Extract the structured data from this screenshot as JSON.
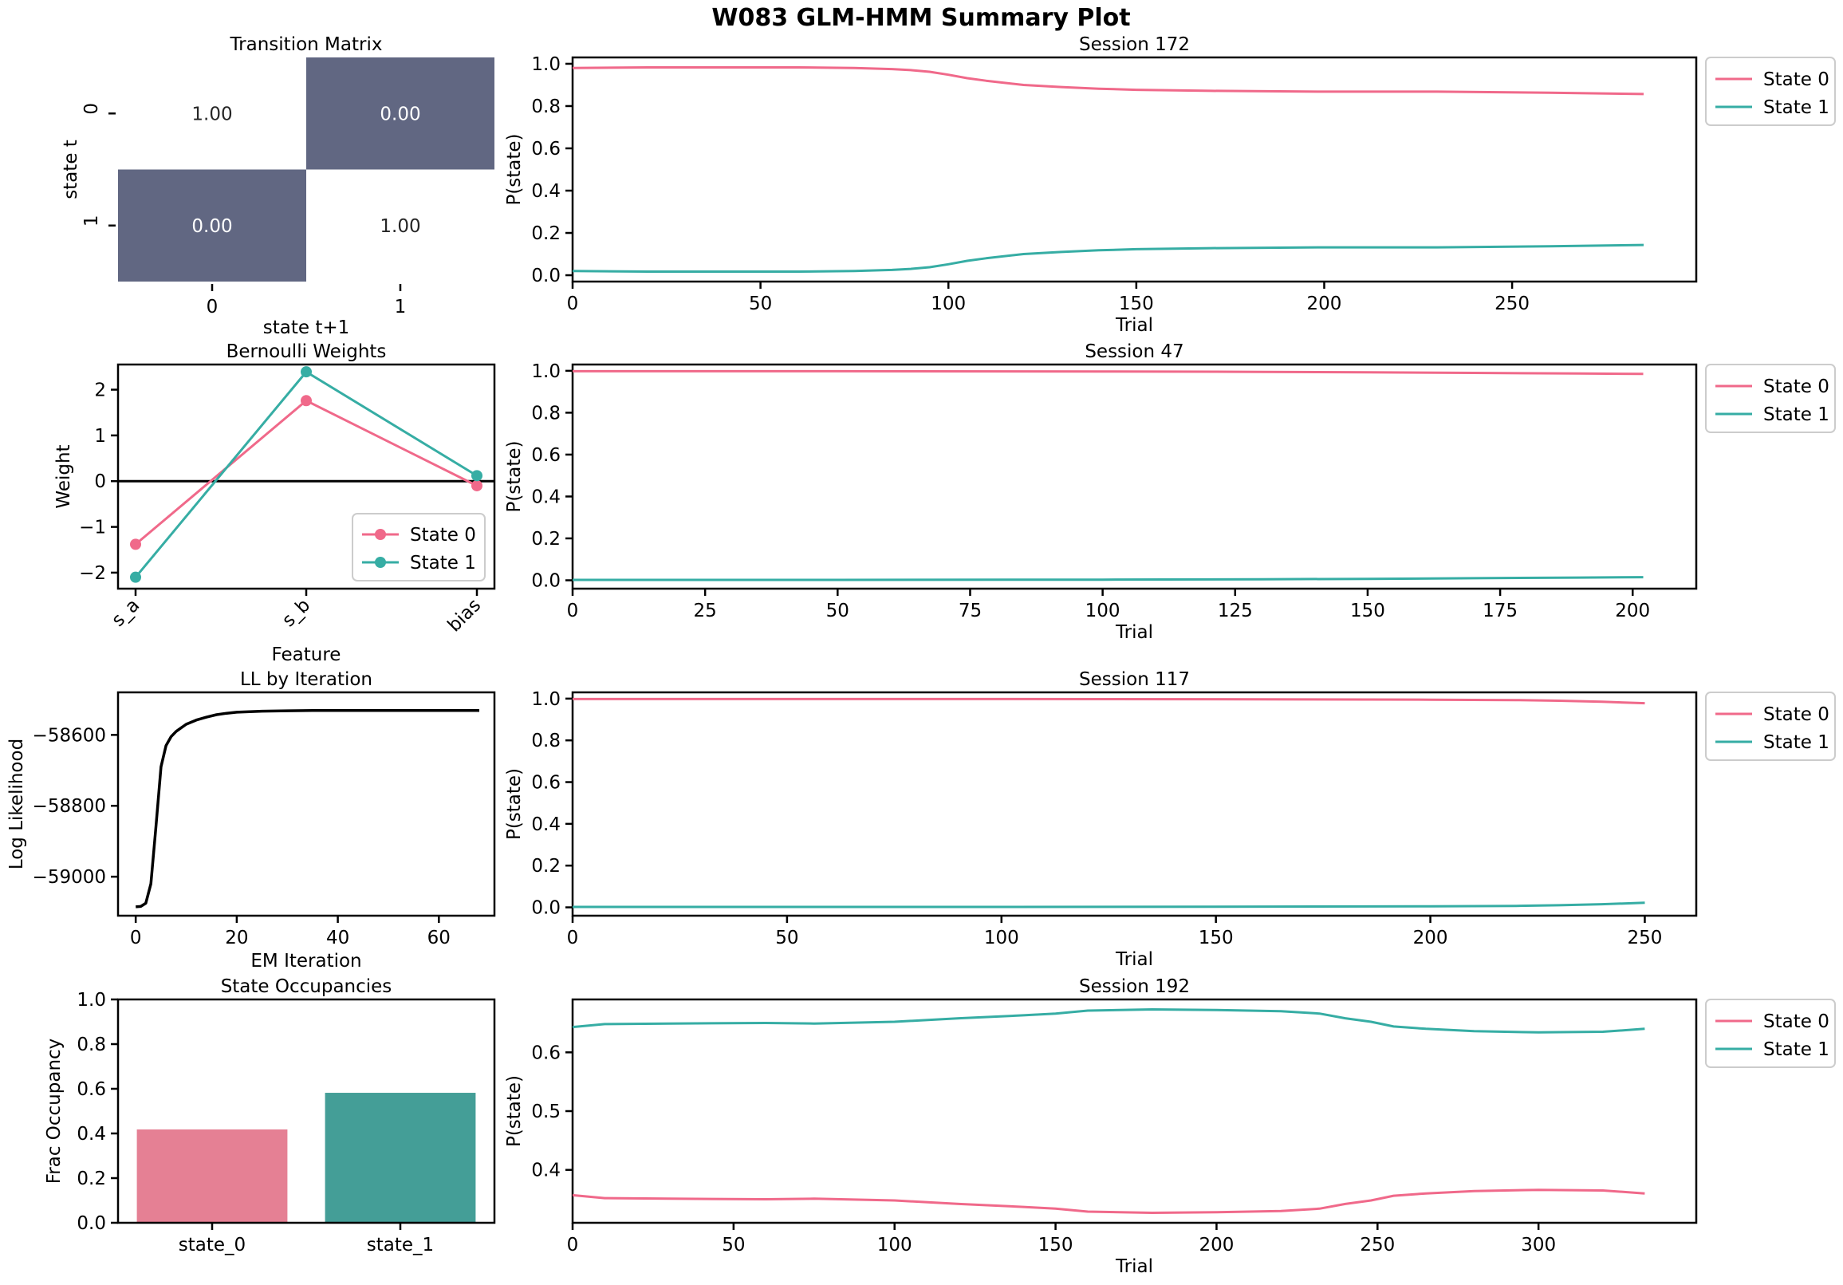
{
  "figure": {
    "title": "W083 GLM-HMM Summary Plot"
  },
  "colors": {
    "state0": "#f0698a",
    "state1": "#36ada4",
    "state0_bar": "#e58094",
    "state1_bar": "#449e97",
    "heat_dark": "#616782",
    "axis": "#000000"
  },
  "chart_data": [
    {
      "id": "transition",
      "type": "heatmap",
      "title": "Transition Matrix",
      "xlabel": "state t+1",
      "ylabel": "state t",
      "row_labels": [
        "0",
        "1"
      ],
      "col_labels": [
        "0",
        "1"
      ],
      "values": [
        [
          1.0,
          0.0
        ],
        [
          0.0,
          1.0
        ]
      ],
      "cell_text": [
        [
          "1.00",
          "0.00"
        ],
        [
          "0.00",
          "1.00"
        ]
      ]
    },
    {
      "id": "weights",
      "type": "line",
      "title": "Bernoulli Weights",
      "xlabel": "Feature",
      "ylabel": "Weight",
      "categories": [
        "s_a",
        "s_b",
        "bias"
      ],
      "ylim": [
        -2.35,
        2.55
      ],
      "yticks": [
        -2,
        -1,
        0,
        1,
        2
      ],
      "ytick_labels": [
        "−2",
        "−1",
        "0",
        "1",
        "2"
      ],
      "zero_line": true,
      "legend_position": "lower-right",
      "series": [
        {
          "name": "State 0",
          "values": [
            -1.38,
            1.76,
            -0.1
          ]
        },
        {
          "name": "State 1",
          "values": [
            -2.1,
            2.39,
            0.12
          ]
        }
      ]
    },
    {
      "id": "ll",
      "type": "line",
      "title": "LL by Iteration",
      "xlabel": "EM Iteration",
      "ylabel": "Log Likelihood",
      "xlim": [
        -3.5,
        71
      ],
      "ylim": [
        -59110,
        -58480
      ],
      "xticks": [
        0,
        20,
        40,
        60
      ],
      "yticks": [
        -59000,
        -58800,
        -58600
      ],
      "ytick_labels": [
        "−59000",
        "−58800",
        "−58600"
      ],
      "x": [
        0,
        1,
        2,
        3,
        4,
        5,
        6,
        7,
        8,
        9,
        10,
        12,
        14,
        16,
        18,
        20,
        25,
        30,
        35,
        40,
        50,
        60,
        68
      ],
      "y": [
        -59085,
        -59084,
        -59075,
        -59020,
        -58860,
        -58690,
        -58630,
        -58605,
        -58590,
        -58580,
        -58570,
        -58558,
        -58550,
        -58543,
        -58539,
        -58536,
        -58533,
        -58532,
        -58531,
        -58531,
        -58531,
        -58531,
        -58531
      ]
    },
    {
      "id": "occupancy",
      "type": "bar",
      "title": "State Occupancies",
      "ylabel": "Frac Occupancy",
      "categories": [
        "state_0",
        "state_1"
      ],
      "values": [
        0.418,
        0.582
      ],
      "ylim": [
        0,
        1.0
      ],
      "yticks": [
        0.0,
        0.2,
        0.4,
        0.6,
        0.8,
        1.0
      ],
      "ytick_labels": [
        "0.0",
        "0.2",
        "0.4",
        "0.6",
        "0.8",
        "1.0"
      ]
    },
    {
      "id": "s172",
      "type": "line",
      "title": "Session 172",
      "xlabel": "Trial",
      "ylabel": "P(state)",
      "xlim": [
        0,
        299
      ],
      "ylim": [
        -0.03,
        1.03
      ],
      "xticks": [
        0,
        50,
        100,
        150,
        200,
        250
      ],
      "yticks": [
        0.0,
        0.2,
        0.4,
        0.6,
        0.8,
        1.0
      ],
      "ytick_labels": [
        "0.0",
        "0.2",
        "0.4",
        "0.6",
        "0.8",
        "1.0"
      ],
      "legend_position": "outside-upper-right",
      "series": [
        {
          "name": "State 0",
          "x": [
            0,
            20,
            40,
            60,
            75,
            85,
            90,
            95,
            100,
            105,
            110,
            120,
            130,
            140,
            150,
            170,
            200,
            230,
            260,
            285
          ],
          "values": [
            0.98,
            0.983,
            0.983,
            0.983,
            0.98,
            0.975,
            0.97,
            0.962,
            0.948,
            0.932,
            0.92,
            0.9,
            0.89,
            0.882,
            0.877,
            0.872,
            0.868,
            0.868,
            0.863,
            0.857
          ]
        },
        {
          "name": "State 1",
          "x": [
            0,
            20,
            40,
            60,
            75,
            85,
            90,
            95,
            100,
            105,
            110,
            120,
            130,
            140,
            150,
            170,
            200,
            230,
            260,
            285
          ],
          "values": [
            0.02,
            0.017,
            0.017,
            0.017,
            0.02,
            0.025,
            0.03,
            0.038,
            0.052,
            0.068,
            0.08,
            0.1,
            0.11,
            0.118,
            0.123,
            0.128,
            0.132,
            0.132,
            0.137,
            0.143
          ]
        }
      ]
    },
    {
      "id": "s47",
      "type": "line",
      "title": "Session 47",
      "xlabel": "Trial",
      "ylabel": "P(state)",
      "xlim": [
        0,
        212
      ],
      "ylim": [
        -0.04,
        1.03
      ],
      "xticks": [
        0,
        25,
        50,
        75,
        100,
        125,
        150,
        175,
        200
      ],
      "yticks": [
        0.0,
        0.2,
        0.4,
        0.6,
        0.8,
        1.0
      ],
      "ytick_labels": [
        "0.0",
        "0.2",
        "0.4",
        "0.6",
        "0.8",
        "1.0"
      ],
      "legend_position": "outside-upper-right",
      "series": [
        {
          "name": "State 0",
          "x": [
            0,
            50,
            100,
            130,
            150,
            170,
            190,
            202
          ],
          "values": [
            0.998,
            0.998,
            0.997,
            0.995,
            0.993,
            0.99,
            0.987,
            0.985
          ]
        },
        {
          "name": "State 1",
          "x": [
            0,
            50,
            100,
            130,
            150,
            170,
            190,
            202
          ],
          "values": [
            0.002,
            0.002,
            0.003,
            0.005,
            0.007,
            0.01,
            0.013,
            0.015
          ]
        }
      ]
    },
    {
      "id": "s117",
      "type": "line",
      "title": "Session 117",
      "xlabel": "Trial",
      "ylabel": "P(state)",
      "xlim": [
        0,
        262
      ],
      "ylim": [
        -0.04,
        1.03
      ],
      "xticks": [
        0,
        50,
        100,
        150,
        200,
        250
      ],
      "yticks": [
        0.0,
        0.2,
        0.4,
        0.6,
        0.8,
        1.0
      ],
      "ytick_labels": [
        "0.0",
        "0.2",
        "0.4",
        "0.6",
        "0.8",
        "1.0"
      ],
      "legend_position": "outside-upper-right",
      "series": [
        {
          "name": "State 0",
          "x": [
            0,
            100,
            150,
            200,
            220,
            230,
            240,
            250
          ],
          "values": [
            0.998,
            0.998,
            0.997,
            0.995,
            0.993,
            0.99,
            0.985,
            0.978
          ]
        },
        {
          "name": "State 1",
          "x": [
            0,
            100,
            150,
            200,
            220,
            230,
            240,
            250
          ],
          "values": [
            0.002,
            0.002,
            0.003,
            0.005,
            0.007,
            0.01,
            0.015,
            0.022
          ]
        }
      ]
    },
    {
      "id": "s192",
      "type": "line",
      "title": "Session 192",
      "xlabel": "Trial",
      "ylabel": "P(state)",
      "xlim": [
        0,
        349
      ],
      "ylim": [
        0.31,
        0.69
      ],
      "xticks": [
        0,
        50,
        100,
        150,
        200,
        250,
        300
      ],
      "yticks": [
        0.4,
        0.5,
        0.6
      ],
      "ytick_labels": [
        "0.4",
        "0.5",
        "0.6"
      ],
      "legend_position": "outside-upper-right",
      "series": [
        {
          "name": "State 0",
          "x": [
            0,
            10,
            30,
            60,
            75,
            100,
            120,
            140,
            150,
            160,
            180,
            200,
            220,
            232,
            240,
            248,
            255,
            265,
            280,
            300,
            320,
            333
          ],
          "values": [
            0.357,
            0.352,
            0.351,
            0.35,
            0.351,
            0.348,
            0.342,
            0.337,
            0.334,
            0.329,
            0.327,
            0.328,
            0.33,
            0.334,
            0.342,
            0.348,
            0.356,
            0.36,
            0.364,
            0.366,
            0.365,
            0.36
          ]
        },
        {
          "name": "State 1",
          "x": [
            0,
            10,
            30,
            60,
            75,
            100,
            120,
            140,
            150,
            160,
            180,
            200,
            220,
            232,
            240,
            248,
            255,
            265,
            280,
            300,
            320,
            333
          ],
          "values": [
            0.643,
            0.648,
            0.649,
            0.65,
            0.649,
            0.652,
            0.658,
            0.663,
            0.666,
            0.671,
            0.673,
            0.672,
            0.67,
            0.666,
            0.658,
            0.652,
            0.644,
            0.64,
            0.636,
            0.634,
            0.635,
            0.64
          ]
        }
      ]
    }
  ]
}
